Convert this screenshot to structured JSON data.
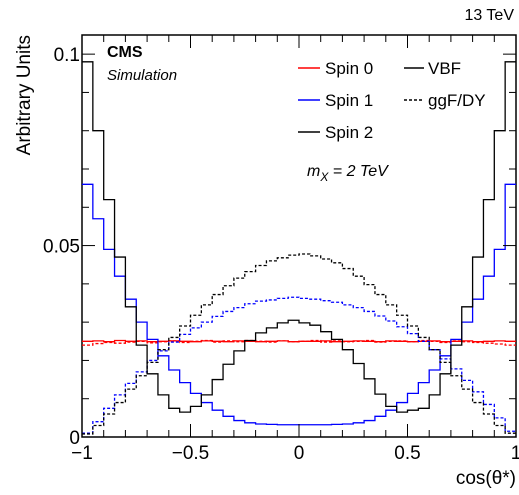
{
  "header": {
    "energy_label": "13 TeV",
    "experiment": "CMS",
    "subtitle": "Simulation",
    "mass_label_main": "m",
    "mass_label_sub": "X",
    "mass_label_value": " = 2 TeV"
  },
  "legend": {
    "spin0": "Spin 0",
    "spin1": "Spin 1",
    "spin2": "Spin 2",
    "vbf": "VBF",
    "ggf": "ggF/DY"
  },
  "chart_data": {
    "type": "line",
    "title": "",
    "xlabel": "cos(θ*)",
    "ylabel": "Arbitrary Units",
    "xlim": [
      -1,
      1
    ],
    "ylim": [
      0,
      0.105
    ],
    "x_ticks": [
      "−1",
      "−0.5",
      "0",
      "0.5",
      "1"
    ],
    "y_ticks": [
      {
        "value": 0,
        "label": "0"
      },
      {
        "value": 0.05,
        "label": "0.05"
      },
      {
        "value": 0.1,
        "label": "0.1"
      }
    ],
    "bin_edges": [
      -1,
      -0.95,
      -0.9,
      -0.85,
      -0.8,
      -0.75,
      -0.7,
      -0.65,
      -0.6,
      -0.55,
      -0.5,
      -0.45,
      -0.4,
      -0.35,
      -0.3,
      -0.25,
      -0.2,
      -0.15,
      -0.1,
      -0.05,
      0,
      0.05,
      0.1,
      0.15,
      0.2,
      0.25,
      0.3,
      0.35,
      0.4,
      0.45,
      0.5,
      0.55,
      0.6,
      0.65,
      0.7,
      0.75,
      0.8,
      0.85,
      0.9,
      0.95,
      1
    ],
    "colors": {
      "spin0": "#ff0000",
      "spin1": "#0000ff",
      "spin2": "#000000"
    },
    "series": [
      {
        "name": "Spin 0 VBF",
        "spin": "spin0",
        "production": "VBF",
        "values": [
          0.025,
          0.0251,
          0.0249,
          0.0252,
          0.025,
          0.0251,
          0.0249,
          0.025,
          0.0251,
          0.025,
          0.0249,
          0.0251,
          0.025,
          0.0249,
          0.0251,
          0.025,
          0.0249,
          0.025,
          0.0251,
          0.0249,
          0.025,
          0.025,
          0.0251,
          0.0249,
          0.025,
          0.0251,
          0.025,
          0.0249,
          0.0251,
          0.025,
          0.0249,
          0.025,
          0.0251,
          0.0249,
          0.025,
          0.0251,
          0.0249,
          0.025,
          0.0251,
          0.025
        ]
      },
      {
        "name": "Spin 0 ggF/DY",
        "spin": "spin0",
        "production": "ggF/DY",
        "values": [
          0.024,
          0.0244,
          0.0247,
          0.0245,
          0.0248,
          0.025,
          0.0246,
          0.0249,
          0.0251,
          0.0247,
          0.025,
          0.0252,
          0.0248,
          0.0251,
          0.0249,
          0.0252,
          0.025,
          0.0248,
          0.0251,
          0.0249,
          0.025,
          0.0252,
          0.0248,
          0.0251,
          0.0249,
          0.025,
          0.0252,
          0.0248,
          0.025,
          0.0251,
          0.0249,
          0.0252,
          0.025,
          0.0247,
          0.0251,
          0.0249,
          0.0247,
          0.0245,
          0.0243,
          0.024
        ]
      },
      {
        "name": "Spin 1 VBF",
        "spin": "spin1",
        "production": "VBF",
        "values": [
          0.066,
          0.057,
          0.049,
          0.042,
          0.036,
          0.03,
          0.0255,
          0.0212,
          0.0175,
          0.0142,
          0.0114,
          0.009,
          0.007,
          0.0054,
          0.0043,
          0.0037,
          0.0034,
          0.0033,
          0.0032,
          0.0032,
          0.0032,
          0.0032,
          0.0032,
          0.0033,
          0.0034,
          0.0037,
          0.0043,
          0.0054,
          0.007,
          0.009,
          0.0114,
          0.0142,
          0.0175,
          0.0212,
          0.0255,
          0.03,
          0.036,
          0.042,
          0.049,
          0.066
        ]
      },
      {
        "name": "Spin 1 ggF/DY",
        "spin": "spin1",
        "production": "ggF/DY",
        "values": [
          0.001,
          0.004,
          0.0075,
          0.011,
          0.014,
          0.017,
          0.02,
          0.0225,
          0.0248,
          0.0268,
          0.0285,
          0.03,
          0.0315,
          0.0328,
          0.0338,
          0.0348,
          0.0355,
          0.0358,
          0.0362,
          0.0365,
          0.0362,
          0.036,
          0.0356,
          0.0352,
          0.0345,
          0.0338,
          0.0328,
          0.0316,
          0.0303,
          0.0288,
          0.027,
          0.025,
          0.0228,
          0.0204,
          0.0178,
          0.0148,
          0.0118,
          0.0085,
          0.005,
          0.0015
        ]
      },
      {
        "name": "Spin 2 VBF",
        "spin": "spin2",
        "production": "VBF",
        "values": [
          0.098,
          0.08,
          0.062,
          0.047,
          0.034,
          0.024,
          0.0165,
          0.011,
          0.0075,
          0.0065,
          0.008,
          0.011,
          0.015,
          0.019,
          0.0225,
          0.0252,
          0.0272,
          0.0285,
          0.0298,
          0.0305,
          0.0298,
          0.0292,
          0.0275,
          0.0255,
          0.0228,
          0.0192,
          0.0152,
          0.0112,
          0.008,
          0.0065,
          0.007,
          0.0075,
          0.011,
          0.0165,
          0.024,
          0.034,
          0.047,
          0.062,
          0.08,
          0.098
        ]
      },
      {
        "name": "Spin 2 ggF/DY",
        "spin": "spin2",
        "production": "ggF/DY",
        "values": [
          0.0008,
          0.003,
          0.006,
          0.009,
          0.0125,
          0.016,
          0.0195,
          0.0228,
          0.026,
          0.029,
          0.0318,
          0.0345,
          0.0372,
          0.0395,
          0.0415,
          0.0432,
          0.0448,
          0.046,
          0.0468,
          0.0475,
          0.0478,
          0.0473,
          0.0465,
          0.0455,
          0.044,
          0.042,
          0.0398,
          0.0372,
          0.0345,
          0.0318,
          0.029,
          0.026,
          0.0228,
          0.0195,
          0.016,
          0.0125,
          0.009,
          0.006,
          0.003,
          0.001
        ]
      }
    ]
  }
}
